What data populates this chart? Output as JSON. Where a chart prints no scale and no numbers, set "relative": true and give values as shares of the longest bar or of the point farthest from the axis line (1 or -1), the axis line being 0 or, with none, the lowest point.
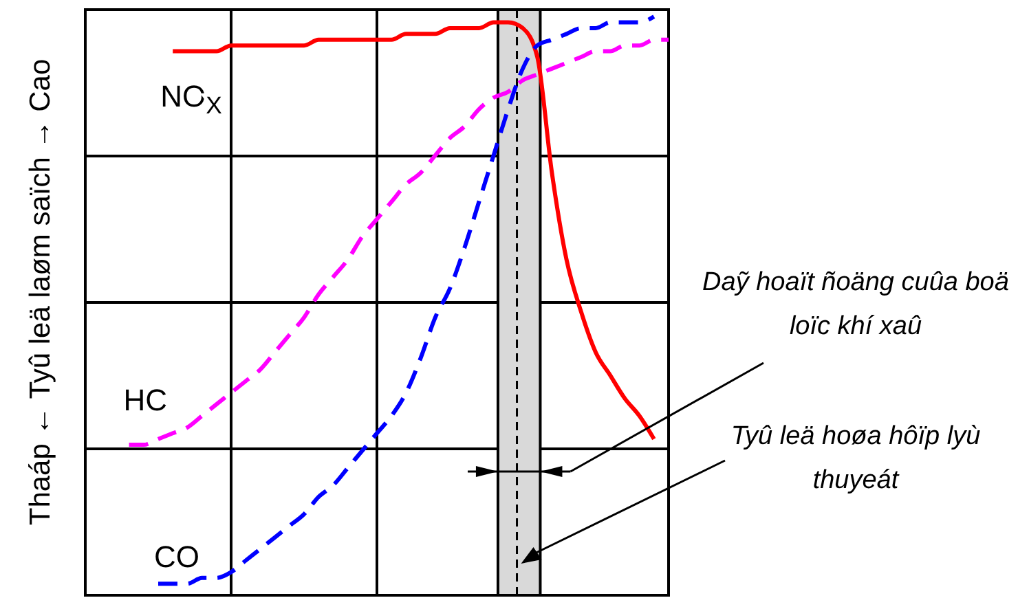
{
  "chart_data": {
    "type": "line",
    "ylabel": "Thaáp ← Tyû leä laøm saïch → Cao",
    "relative": true,
    "categories": [
      null,
      null,
      null,
      null,
      null,
      null,
      null,
      null,
      null,
      null,
      null,
      null,
      null,
      null,
      null,
      null,
      null,
      null,
      null,
      null,
      null,
      null,
      null,
      null,
      null,
      null,
      null,
      null,
      null,
      null,
      null,
      null,
      null,
      null,
      null,
      null,
      null,
      null,
      null,
      null,
      null
    ],
    "tick_labels": false,
    "grid": true,
    "legend": false,
    "marker": "none",
    "series": [
      {
        "name": "NO$_{X}$",
        "color": "#ff0000",
        "line_style": "solid",
        "values": [
          null,
          null,
          null,
          null,
          null,
          null,
          0.94,
          0.94,
          0.94,
          0.94,
          0.95,
          0.95,
          0.95,
          0.95,
          0.95,
          0.95,
          0.96,
          0.96,
          0.96,
          0.96,
          0.96,
          0.96,
          0.97,
          0.97,
          0.97,
          0.98,
          0.98,
          0.98,
          0.99,
          0.99,
          0.98,
          0.93,
          0.73,
          0.58,
          0.49,
          0.42,
          0.38,
          0.34,
          0.31,
          0.27,
          null
        ]
      },
      {
        "name": "HC",
        "color": "#ff00ff",
        "line_style": "dashed",
        "values": [
          null,
          null,
          null,
          0.26,
          0.26,
          0.27,
          0.28,
          0.29,
          0.31,
          0.33,
          0.35,
          0.37,
          0.39,
          0.42,
          0.45,
          0.48,
          0.52,
          0.55,
          0.58,
          0.62,
          0.65,
          0.68,
          0.71,
          0.73,
          0.76,
          0.79,
          0.81,
          0.84,
          0.86,
          0.87,
          0.89,
          0.9,
          0.91,
          0.92,
          0.93,
          0.94,
          0.94,
          0.95,
          0.95,
          0.96,
          0.96
        ]
      },
      {
        "name": "CO",
        "color": "#0000ff",
        "line_style": "dashed",
        "values": [
          null,
          null,
          null,
          null,
          null,
          0.02,
          0.02,
          0.02,
          0.03,
          0.03,
          0.04,
          0.06,
          0.08,
          0.1,
          0.12,
          0.14,
          0.17,
          0.19,
          0.22,
          0.25,
          0.28,
          0.31,
          0.35,
          0.41,
          0.48,
          0.53,
          0.6,
          0.68,
          0.76,
          0.84,
          0.91,
          0.95,
          0.96,
          0.97,
          0.98,
          0.98,
          0.99,
          0.99,
          0.99,
          1.0,
          null
        ]
      }
    ],
    "annotations": [
      "Daỹ hoaït ñoäng cuûa boä loïc khí xaû",
      "Tyû leä hoøa hôïp lyù thuyeát"
    ]
  }
}
